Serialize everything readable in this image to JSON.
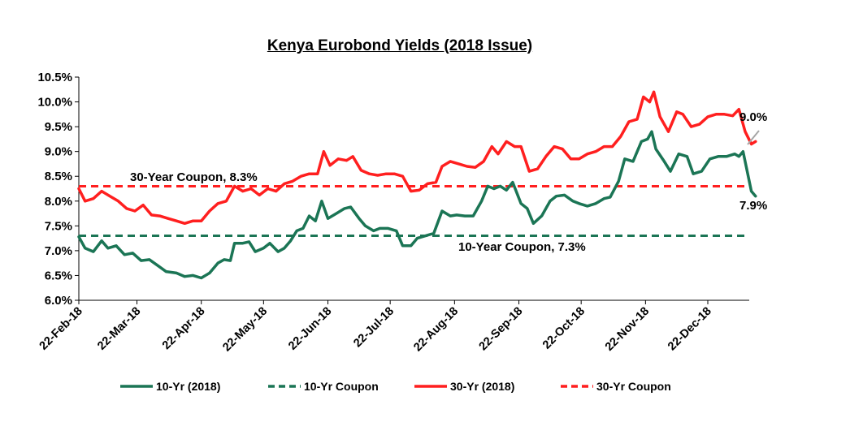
{
  "chart_data": {
    "type": "line",
    "title": "Kenya Eurobond  Yields (2018 Issue)",
    "xlabel": "",
    "ylabel": "",
    "ylim": [
      6.0,
      10.5
    ],
    "y_tick_values": [
      6.0,
      6.5,
      7.0,
      7.5,
      8.0,
      8.5,
      9.0,
      9.5,
      10.0,
      10.5
    ],
    "y_tick_labels": [
      "6.0%",
      "6.5%",
      "7.0%",
      "7.5%",
      "8.0%",
      "8.5%",
      "9.0%",
      "9.5%",
      "10.0%",
      "10.5%"
    ],
    "x_tick_labels": [
      "22-Feb-18",
      "22-Mar-18",
      "22-Apr-18",
      "22-May-18",
      "22-Jun-18",
      "22-Jul-18",
      "22-Aug-18",
      "22-Sep-18",
      "22-Oct-18",
      "22-Nov-18",
      "22-Dec-18"
    ],
    "x_tick_dates": [
      "2018-02-22",
      "2018-03-22",
      "2018-04-22",
      "2018-05-22",
      "2018-06-22",
      "2018-07-22",
      "2018-08-22",
      "2018-09-22",
      "2018-10-22",
      "2018-11-22",
      "2018-12-22"
    ],
    "grid": false,
    "legend_position": "bottom",
    "series": [
      {
        "name": "10-Yr (2018)",
        "color": "#1b7555",
        "style": "solid",
        "points": [
          [
            "2018-02-22",
            7.28
          ],
          [
            "2018-02-25",
            7.05
          ],
          [
            "2018-03-01",
            6.98
          ],
          [
            "2018-03-05",
            7.2
          ],
          [
            "2018-03-08",
            7.05
          ],
          [
            "2018-03-12",
            7.1
          ],
          [
            "2018-03-16",
            6.92
          ],
          [
            "2018-03-20",
            6.95
          ],
          [
            "2018-03-24",
            6.8
          ],
          [
            "2018-03-28",
            6.82
          ],
          [
            "2018-04-01",
            6.7
          ],
          [
            "2018-04-05",
            6.58
          ],
          [
            "2018-04-10",
            6.55
          ],
          [
            "2018-04-14",
            6.48
          ],
          [
            "2018-04-18",
            6.5
          ],
          [
            "2018-04-22",
            6.45
          ],
          [
            "2018-04-26",
            6.55
          ],
          [
            "2018-04-30",
            6.75
          ],
          [
            "2018-05-03",
            6.82
          ],
          [
            "2018-05-06",
            6.8
          ],
          [
            "2018-05-08",
            7.15
          ],
          [
            "2018-05-12",
            7.15
          ],
          [
            "2018-05-15",
            7.18
          ],
          [
            "2018-05-18",
            6.98
          ],
          [
            "2018-05-22",
            7.05
          ],
          [
            "2018-05-25",
            7.15
          ],
          [
            "2018-05-29",
            6.98
          ],
          [
            "2018-06-01",
            7.05
          ],
          [
            "2018-06-04",
            7.2
          ],
          [
            "2018-06-07",
            7.4
          ],
          [
            "2018-06-10",
            7.45
          ],
          [
            "2018-06-13",
            7.7
          ],
          [
            "2018-06-16",
            7.6
          ],
          [
            "2018-06-19",
            8.0
          ],
          [
            "2018-06-22",
            7.65
          ],
          [
            "2018-06-26",
            7.75
          ],
          [
            "2018-06-30",
            7.85
          ],
          [
            "2018-07-03",
            7.88
          ],
          [
            "2018-07-07",
            7.65
          ],
          [
            "2018-07-10",
            7.5
          ],
          [
            "2018-07-14",
            7.4
          ],
          [
            "2018-07-17",
            7.45
          ],
          [
            "2018-07-21",
            7.45
          ],
          [
            "2018-07-25",
            7.4
          ],
          [
            "2018-07-28",
            7.1
          ],
          [
            "2018-08-01",
            7.1
          ],
          [
            "2018-08-04",
            7.25
          ],
          [
            "2018-08-08",
            7.3
          ],
          [
            "2018-08-12",
            7.35
          ],
          [
            "2018-08-16",
            7.8
          ],
          [
            "2018-08-20",
            7.7
          ],
          [
            "2018-08-23",
            7.72
          ],
          [
            "2018-08-27",
            7.7
          ],
          [
            "2018-08-31",
            7.7
          ],
          [
            "2018-09-04",
            8.0
          ],
          [
            "2018-09-07",
            8.3
          ],
          [
            "2018-09-10",
            8.25
          ],
          [
            "2018-09-13",
            8.3
          ],
          [
            "2018-09-16",
            8.22
          ],
          [
            "2018-09-19",
            8.38
          ],
          [
            "2018-09-23",
            7.95
          ],
          [
            "2018-09-26",
            7.85
          ],
          [
            "2018-09-29",
            7.55
          ],
          [
            "2018-10-03",
            7.7
          ],
          [
            "2018-10-07",
            8.0
          ],
          [
            "2018-10-10",
            8.1
          ],
          [
            "2018-10-14",
            8.12
          ],
          [
            "2018-10-18",
            8.0
          ],
          [
            "2018-10-21",
            7.95
          ],
          [
            "2018-10-25",
            7.9
          ],
          [
            "2018-10-29",
            7.95
          ],
          [
            "2018-11-02",
            8.05
          ],
          [
            "2018-11-05",
            8.08
          ],
          [
            "2018-11-09",
            8.4
          ],
          [
            "2018-11-12",
            8.85
          ],
          [
            "2018-11-16",
            8.8
          ],
          [
            "2018-11-20",
            9.2
          ],
          [
            "2018-11-23",
            9.25
          ],
          [
            "2018-11-25",
            9.4
          ],
          [
            "2018-11-27",
            9.05
          ],
          [
            "2018-12-01",
            8.8
          ],
          [
            "2018-12-04",
            8.6
          ],
          [
            "2018-12-08",
            8.95
          ],
          [
            "2018-12-12",
            8.9
          ],
          [
            "2018-12-15",
            8.55
          ],
          [
            "2018-12-19",
            8.6
          ],
          [
            "2018-12-23",
            8.85
          ],
          [
            "2018-12-27",
            8.9
          ],
          [
            "2018-12-31",
            8.9
          ],
          [
            "2019-01-04",
            8.95
          ],
          [
            "2019-01-06",
            8.9
          ],
          [
            "2019-01-08",
            9.0
          ],
          [
            "2019-01-10",
            8.6
          ],
          [
            "2019-01-12",
            8.2
          ],
          [
            "2019-01-14",
            8.1
          ]
        ]
      },
      {
        "name": "10-Yr Coupon",
        "color": "#1b7555",
        "style": "dashed",
        "value": 7.3
      },
      {
        "name": "30-Yr (2018)",
        "color": "#ff1f1f",
        "style": "solid",
        "points": [
          [
            "2018-02-22",
            8.25
          ],
          [
            "2018-02-25",
            8.0
          ],
          [
            "2018-03-01",
            8.05
          ],
          [
            "2018-03-05",
            8.2
          ],
          [
            "2018-03-09",
            8.1
          ],
          [
            "2018-03-13",
            8.0
          ],
          [
            "2018-03-17",
            7.85
          ],
          [
            "2018-03-21",
            7.8
          ],
          [
            "2018-03-25",
            7.92
          ],
          [
            "2018-03-29",
            7.72
          ],
          [
            "2018-04-02",
            7.7
          ],
          [
            "2018-04-06",
            7.65
          ],
          [
            "2018-04-10",
            7.6
          ],
          [
            "2018-04-14",
            7.55
          ],
          [
            "2018-04-18",
            7.6
          ],
          [
            "2018-04-22",
            7.6
          ],
          [
            "2018-04-26",
            7.8
          ],
          [
            "2018-04-30",
            7.95
          ],
          [
            "2018-05-04",
            8.0
          ],
          [
            "2018-05-08",
            8.3
          ],
          [
            "2018-05-12",
            8.2
          ],
          [
            "2018-05-16",
            8.25
          ],
          [
            "2018-05-20",
            8.12
          ],
          [
            "2018-05-24",
            8.25
          ],
          [
            "2018-05-28",
            8.2
          ],
          [
            "2018-06-01",
            8.35
          ],
          [
            "2018-06-05",
            8.4
          ],
          [
            "2018-06-09",
            8.5
          ],
          [
            "2018-06-13",
            8.55
          ],
          [
            "2018-06-17",
            8.55
          ],
          [
            "2018-06-20",
            9.0
          ],
          [
            "2018-06-23",
            8.72
          ],
          [
            "2018-06-27",
            8.85
          ],
          [
            "2018-07-01",
            8.82
          ],
          [
            "2018-07-04",
            8.9
          ],
          [
            "2018-07-08",
            8.62
          ],
          [
            "2018-07-12",
            8.55
          ],
          [
            "2018-07-16",
            8.52
          ],
          [
            "2018-07-20",
            8.55
          ],
          [
            "2018-07-24",
            8.55
          ],
          [
            "2018-07-28",
            8.5
          ],
          [
            "2018-08-01",
            8.2
          ],
          [
            "2018-08-05",
            8.22
          ],
          [
            "2018-08-09",
            8.35
          ],
          [
            "2018-08-13",
            8.38
          ],
          [
            "2018-08-16",
            8.7
          ],
          [
            "2018-08-20",
            8.8
          ],
          [
            "2018-08-24",
            8.75
          ],
          [
            "2018-08-28",
            8.7
          ],
          [
            "2018-09-01",
            8.68
          ],
          [
            "2018-09-05",
            8.8
          ],
          [
            "2018-09-09",
            9.1
          ],
          [
            "2018-09-12",
            8.95
          ],
          [
            "2018-09-16",
            9.2
          ],
          [
            "2018-09-20",
            9.1
          ],
          [
            "2018-09-23",
            9.1
          ],
          [
            "2018-09-27",
            8.6
          ],
          [
            "2018-10-01",
            8.65
          ],
          [
            "2018-10-05",
            8.9
          ],
          [
            "2018-10-09",
            9.1
          ],
          [
            "2018-10-13",
            9.05
          ],
          [
            "2018-10-17",
            8.85
          ],
          [
            "2018-10-21",
            8.85
          ],
          [
            "2018-10-25",
            8.95
          ],
          [
            "2018-10-29",
            9.0
          ],
          [
            "2018-11-02",
            9.1
          ],
          [
            "2018-11-06",
            9.1
          ],
          [
            "2018-11-10",
            9.3
          ],
          [
            "2018-11-14",
            9.6
          ],
          [
            "2018-11-18",
            9.65
          ],
          [
            "2018-11-21",
            10.1
          ],
          [
            "2018-11-24",
            10.0
          ],
          [
            "2018-11-26",
            10.2
          ],
          [
            "2018-11-29",
            9.7
          ],
          [
            "2018-12-03",
            9.4
          ],
          [
            "2018-12-07",
            9.8
          ],
          [
            "2018-12-10",
            9.75
          ],
          [
            "2018-12-14",
            9.5
          ],
          [
            "2018-12-18",
            9.55
          ],
          [
            "2018-12-22",
            9.7
          ],
          [
            "2018-12-26",
            9.75
          ],
          [
            "2018-12-30",
            9.75
          ],
          [
            "2019-01-03",
            9.72
          ],
          [
            "2019-01-06",
            9.85
          ],
          [
            "2019-01-09",
            9.4
          ],
          [
            "2019-01-12",
            9.15
          ],
          [
            "2019-01-14",
            9.2
          ]
        ]
      },
      {
        "name": "30-Yr Coupon",
        "color": "#ff1f1f",
        "style": "dashed",
        "value": 8.3
      }
    ],
    "annotations": [
      {
        "text": "30-Year Coupon,  8.3%"
      },
      {
        "text": "10-Year Coupon,  7.3%"
      },
      {
        "text": "9.0%"
      },
      {
        "text": "7.9%"
      }
    ]
  }
}
